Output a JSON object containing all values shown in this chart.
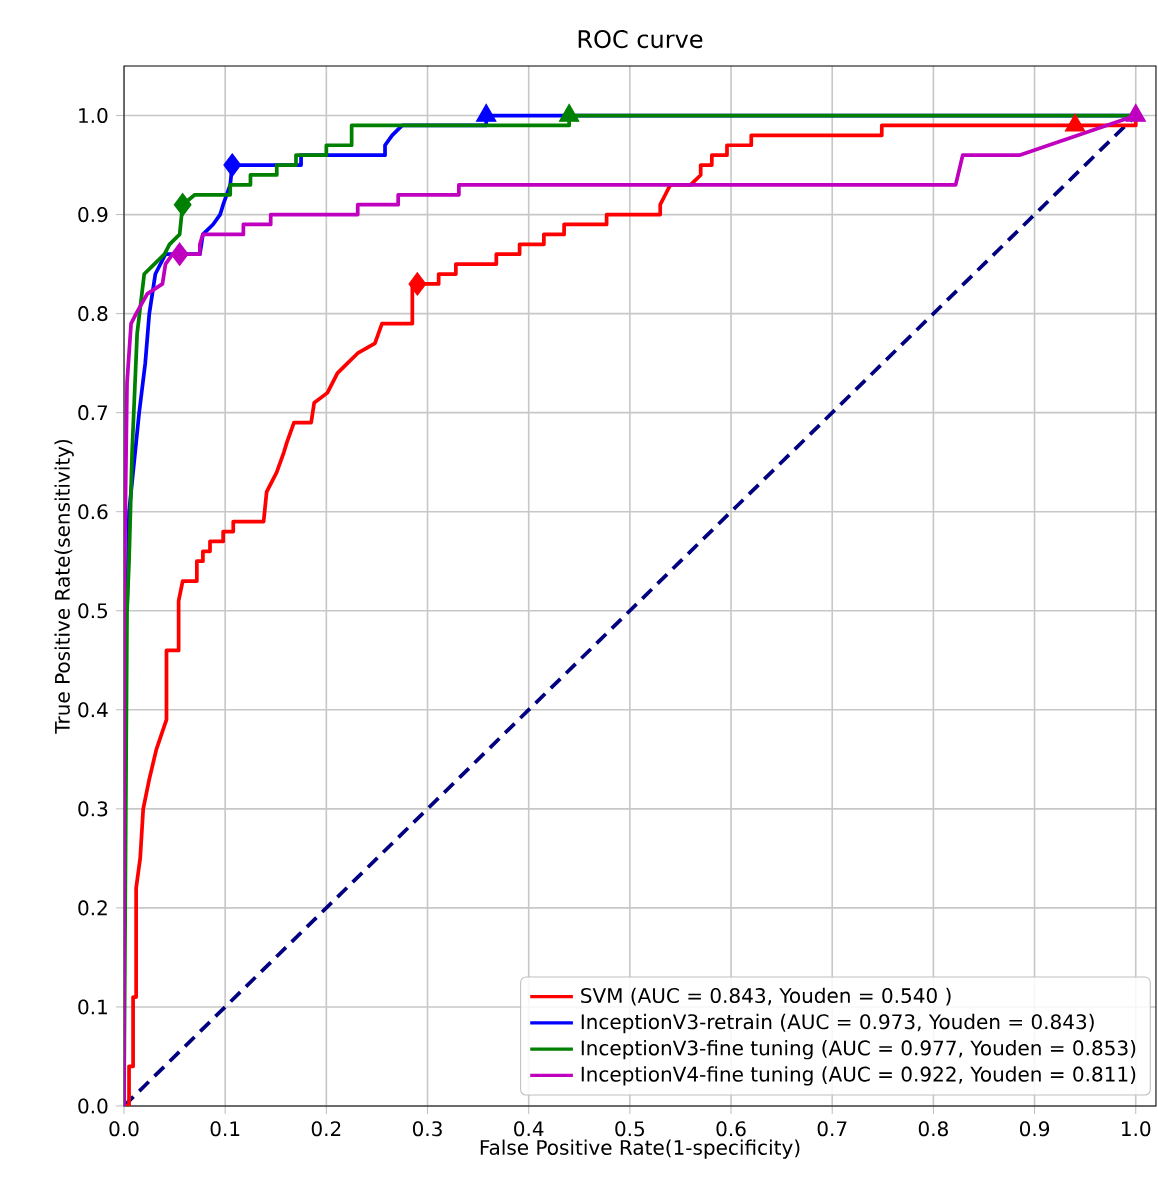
{
  "chart_data": {
    "type": "line",
    "title": "ROC curve",
    "xlabel": "False Positive Rate(1-specificity)",
    "ylabel": "True Positive Rate(sensitivity)",
    "xlim": [
      0,
      1.02
    ],
    "ylim": [
      0,
      1.05
    ],
    "xticks": [
      {
        "value": 0,
        "label": "0.0"
      },
      0.1,
      0.2,
      0.3,
      0.4,
      0.5,
      0.6,
      0.7,
      0.8,
      0.9,
      {
        "value": 1,
        "label": "1.0"
      }
    ],
    "yticks": [
      {
        "value": 0,
        "label": "0.0"
      },
      0.1,
      0.2,
      0.3,
      0.4,
      0.5,
      0.6,
      0.7,
      0.8,
      0.9,
      {
        "value": 1,
        "label": "1.0"
      }
    ],
    "grid": true,
    "legend": "bottom right",
    "series": [
      {
        "type": "line",
        "line_style": "dashed",
        "color": "#000080",
        "x": [
          0,
          1
        ],
        "values": [
          0,
          1
        ]
      },
      {
        "name": "SVM (AUC = 0.843, Youden = 0.540 )",
        "color": "#ff0000",
        "x": [
          0,
          0.005,
          0.005,
          0.009,
          0.009,
          0.012,
          0.012,
          0.016,
          0.019,
          0.025,
          0.032,
          0.042,
          0.042,
          0.054,
          0.054,
          0.058,
          0.072,
          0.072,
          0.078,
          0.078,
          0.085,
          0.085,
          0.098,
          0.098,
          0.108,
          0.108,
          0.138,
          0.141,
          0.151,
          0.158,
          0.161,
          0.168,
          0.185,
          0.188,
          0.201,
          0.211,
          0.221,
          0.231,
          0.248,
          0.255,
          0.285,
          0.285,
          0.311,
          0.311,
          0.328,
          0.328,
          0.368,
          0.368,
          0.391,
          0.391,
          0.415,
          0.415,
          0.435,
          0.435,
          0.477,
          0.477,
          0.53,
          0.53,
          0.535,
          0.54,
          0.56,
          0.57,
          0.57,
          0.581,
          0.581,
          0.596,
          0.596,
          0.62,
          0.62,
          0.749,
          0.749,
          1.0,
          1.0
        ],
        "values": [
          0,
          0,
          0.04,
          0.04,
          0.11,
          0.11,
          0.22,
          0.25,
          0.3,
          0.33,
          0.36,
          0.39,
          0.46,
          0.46,
          0.51,
          0.53,
          0.53,
          0.55,
          0.55,
          0.56,
          0.56,
          0.57,
          0.57,
          0.58,
          0.58,
          0.59,
          0.59,
          0.62,
          0.64,
          0.66,
          0.67,
          0.69,
          0.69,
          0.71,
          0.72,
          0.74,
          0.75,
          0.76,
          0.77,
          0.79,
          0.79,
          0.83,
          0.83,
          0.84,
          0.84,
          0.85,
          0.85,
          0.86,
          0.86,
          0.87,
          0.87,
          0.88,
          0.88,
          0.89,
          0.89,
          0.9,
          0.9,
          0.91,
          0.92,
          0.93,
          0.93,
          0.94,
          0.95,
          0.95,
          0.96,
          0.96,
          0.97,
          0.97,
          0.98,
          0.98,
          0.99,
          0.99,
          1.0
        ]
      },
      {
        "name": "InceptionV3-retrain (AUC = 0.973, Youden = 0.843)",
        "color": "#0000ff",
        "x": [
          0.003,
          0.005,
          0.011,
          0.015,
          0.021,
          0.025,
          0.031,
          0.041,
          0.075,
          0.078,
          0.088,
          0.095,
          0.098,
          0.105,
          0.107,
          0.175,
          0.175,
          0.258,
          0.258,
          0.265,
          0.275,
          0.358,
          0.358,
          1.0
        ],
        "values": [
          0.5,
          0.6,
          0.66,
          0.7,
          0.75,
          0.8,
          0.84,
          0.86,
          0.86,
          0.88,
          0.89,
          0.9,
          0.91,
          0.93,
          0.95,
          0.95,
          0.96,
          0.96,
          0.97,
          0.98,
          0.99,
          0.99,
          1.0,
          1.0
        ]
      },
      {
        "name": "InceptionV3-fine tuning (AUC = 0.977, Youden = 0.853)",
        "color": "#008000",
        "x": [
          0,
          0.003,
          0.005,
          0.008,
          0.013,
          0.02,
          0.03,
          0.04,
          0.045,
          0.055,
          0.058,
          0.07,
          0.105,
          0.105,
          0.125,
          0.125,
          0.151,
          0.151,
          0.17,
          0.17,
          0.2,
          0.2,
          0.225,
          0.225,
          0.44,
          0.44,
          1.0
        ],
        "values": [
          0,
          0.5,
          0.55,
          0.66,
          0.78,
          0.84,
          0.85,
          0.86,
          0.87,
          0.88,
          0.91,
          0.92,
          0.92,
          0.93,
          0.93,
          0.94,
          0.94,
          0.95,
          0.95,
          0.96,
          0.96,
          0.97,
          0.97,
          0.99,
          0.99,
          1.0,
          1.0
        ]
      },
      {
        "name": "InceptionV4-fine tuning (AUC = 0.922, Youden = 0.811)",
        "color": "#bf00bf",
        "x": [
          0,
          0,
          0.003,
          0.007,
          0.012,
          0.023,
          0.038,
          0.041,
          0.048,
          0.075,
          0.075,
          0.078,
          0.118,
          0.118,
          0.145,
          0.145,
          0.231,
          0.231,
          0.271,
          0.271,
          0.331,
          0.331,
          0.822,
          0.829,
          0.885,
          1.0
        ],
        "values": [
          0,
          0.5,
          0.73,
          0.79,
          0.8,
          0.82,
          0.83,
          0.85,
          0.86,
          0.86,
          0.87,
          0.88,
          0.88,
          0.89,
          0.89,
          0.9,
          0.9,
          0.91,
          0.91,
          0.92,
          0.92,
          0.93,
          0.93,
          0.96,
          0.96,
          1.0
        ]
      },
      {
        "type": "scatter",
        "marker": "diamond",
        "colors": [
          "#ff0000",
          "#0000ff",
          "#008000",
          "#bf00bf"
        ],
        "x": [
          0.29,
          0.107,
          0.058,
          0.055
        ],
        "values": [
          0.83,
          0.95,
          0.91,
          0.86
        ]
      },
      {
        "type": "scatter",
        "marker": "triangle",
        "colors": [
          "#ff0000",
          "#0000ff",
          "#008000",
          "#bf00bf"
        ],
        "x": [
          0.94,
          0.358,
          0.44,
          1.0
        ],
        "values": [
          0.99,
          1.0,
          1.0,
          1.0
        ]
      }
    ]
  }
}
